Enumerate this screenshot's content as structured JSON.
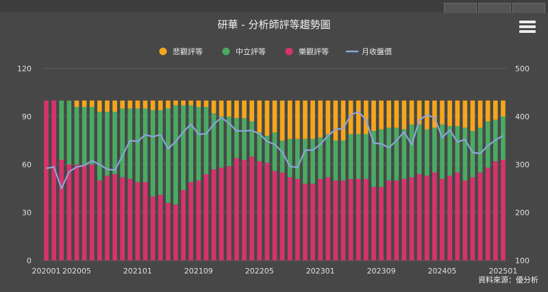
{
  "source_note": "資料來源：優分析",
  "chart_data": {
    "type": "bar",
    "title": "研華 - 分析師評等趨勢圖",
    "stacked": true,
    "grid": true,
    "legend_position": "top",
    "y_left": {
      "min": 0,
      "max": 120,
      "ticks": [
        0,
        30,
        60,
        90,
        120
      ]
    },
    "y_right": {
      "min": 100,
      "max": 500,
      "ticks": [
        100,
        200,
        300,
        400,
        500
      ]
    },
    "x_tick_labels": [
      {
        "index": 0,
        "label": "202001"
      },
      {
        "index": 4,
        "label": "202005"
      },
      {
        "index": 12,
        "label": "202101"
      },
      {
        "index": 20,
        "label": "202109"
      },
      {
        "index": 28,
        "label": "202205"
      },
      {
        "index": 36,
        "label": "202301"
      },
      {
        "index": 44,
        "label": "202309"
      },
      {
        "index": 52,
        "label": "202405"
      },
      {
        "index": 60,
        "label": "202501"
      }
    ],
    "categories": [
      "202001",
      "202002",
      "202003",
      "202004",
      "202005",
      "202006",
      "202007",
      "202008",
      "202009",
      "202010",
      "202011",
      "202012",
      "202101",
      "202102",
      "202103",
      "202104",
      "202105",
      "202106",
      "202107",
      "202108",
      "202109",
      "202110",
      "202111",
      "202112",
      "202201",
      "202202",
      "202203",
      "202204",
      "202205",
      "202206",
      "202207",
      "202208",
      "202209",
      "202210",
      "202211",
      "202212",
      "202301",
      "202302",
      "202303",
      "202304",
      "202305",
      "202306",
      "202307",
      "202308",
      "202309",
      "202310",
      "202311",
      "202312",
      "202401",
      "202402",
      "202403",
      "202404",
      "202405",
      "202406",
      "202407",
      "202408",
      "202409",
      "202410",
      "202411",
      "202412",
      "202501"
    ],
    "series": [
      {
        "name": "樂觀評等",
        "axis": "left",
        "color": "#d6336c",
        "values": [
          100,
          100,
          63,
          60,
          60,
          60,
          60,
          50,
          53,
          54,
          52,
          51,
          49,
          49,
          40,
          41,
          36,
          35,
          44,
          49,
          50,
          54,
          57,
          58,
          59,
          64,
          63,
          65,
          62,
          61,
          56,
          55,
          52,
          51,
          48,
          48,
          51,
          52,
          50,
          50,
          51,
          51,
          51,
          46,
          46,
          50,
          50,
          51,
          52,
          54,
          53,
          55,
          51,
          53,
          55,
          50,
          52,
          55,
          58,
          62,
          63
        ]
      },
      {
        "name": "中立評等",
        "axis": "left",
        "color": "#4aaa63",
        "values": [
          0,
          0,
          37,
          40,
          36,
          36,
          36,
          43,
          40,
          39,
          43,
          44,
          46,
          46,
          54,
          53,
          59,
          62,
          53,
          48,
          46,
          42,
          35,
          32,
          31,
          25,
          26,
          22,
          18,
          17,
          24,
          20,
          24,
          25,
          28,
          28,
          26,
          27,
          25,
          25,
          28,
          28,
          28,
          35,
          36,
          33,
          33,
          31,
          33,
          31,
          29,
          28,
          34,
          31,
          29,
          33,
          29,
          28,
          29,
          26,
          27
        ]
      },
      {
        "name": "悲觀評等",
        "axis": "left",
        "color": "#f4a61c",
        "values": [
          0,
          0,
          0,
          0,
          4,
          4,
          4,
          7,
          7,
          7,
          5,
          5,
          5,
          5,
          6,
          6,
          5,
          3,
          3,
          3,
          4,
          4,
          8,
          10,
          10,
          11,
          11,
          13,
          20,
          22,
          20,
          25,
          24,
          24,
          24,
          24,
          23,
          21,
          25,
          25,
          21,
          21,
          21,
          19,
          18,
          17,
          17,
          18,
          15,
          15,
          18,
          17,
          15,
          16,
          16,
          17,
          19,
          17,
          13,
          12,
          10
        ]
      },
      {
        "name": "月收盤價",
        "axis": "right",
        "type": "line",
        "color": "#8ea4dc",
        "values": [
          292,
          295,
          250,
          285,
          295,
          298,
          308,
          300,
          290,
          288,
          318,
          350,
          348,
          362,
          358,
          362,
          333,
          348,
          368,
          384,
          363,
          364,
          384,
          398,
          386,
          370,
          370,
          371,
          364,
          348,
          342,
          326,
          296,
          294,
          330,
          330,
          342,
          360,
          373,
          375,
          403,
          410,
          393,
          345,
          343,
          335,
          350,
          368,
          341,
          393,
          403,
          398,
          356,
          372,
          347,
          352,
          325,
          323,
          339,
          351,
          360
        ]
      }
    ]
  }
}
